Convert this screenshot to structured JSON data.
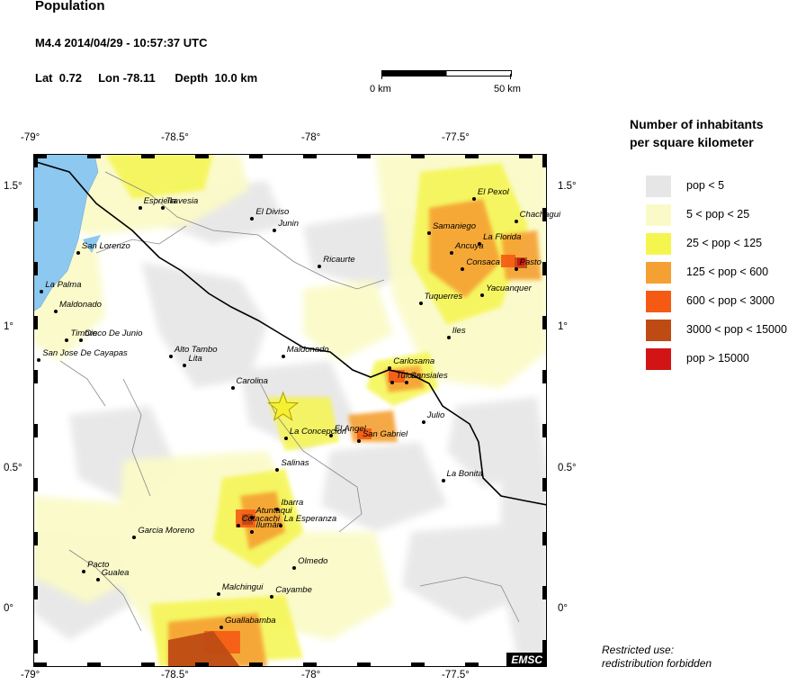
{
  "header": {
    "title": "Population",
    "event": "M4.4  2014/04/29 - 10:57:37 UTC",
    "lat_label": "Lat",
    "lat": "0.72",
    "lon_label": "Lon",
    "lon": "-78.11",
    "depth_label": "Depth",
    "depth": "10.0 km"
  },
  "scale_bar": {
    "left_label": "0 km",
    "right_label": "50 km"
  },
  "legend": {
    "title_line1": "Number of inhabitants",
    "title_line2": "per square kilometer",
    "items": [
      {
        "label": "pop < 5",
        "color": "#e6e6e6"
      },
      {
        "label": "5 < pop < 25",
        "color": "#fafac8"
      },
      {
        "label": "25 < pop < 125",
        "color": "#f5f550"
      },
      {
        "label": "125 < pop < 600",
        "color": "#f5a032"
      },
      {
        "label": "600 < pop < 3000",
        "color": "#f55a14"
      },
      {
        "label": "3000 < pop < 15000",
        "color": "#be4b14"
      },
      {
        "label": "pop > 15000",
        "color": "#d21414"
      }
    ]
  },
  "axes": {
    "lon_ticks": [
      "-79°",
      "-78.5°",
      "-78°",
      "-77.5°"
    ],
    "lat_ticks": [
      "1.5°",
      "1°",
      "0.5°",
      "0°"
    ],
    "lon_range": [
      -79.0,
      -77.17
    ],
    "lat_range": [
      -0.2,
      1.62
    ]
  },
  "epicenter": {
    "lat": 0.72,
    "lon": -78.11
  },
  "places": [
    {
      "name": "Esprieila",
      "lon": -78.62,
      "lat": 1.43
    },
    {
      "name": "Travesia",
      "lon": -78.54,
      "lat": 1.43
    },
    {
      "name": "El Diviso",
      "lon": -78.22,
      "lat": 1.39
    },
    {
      "name": "Junin",
      "lon": -78.14,
      "lat": 1.35
    },
    {
      "name": "San Lorenzo",
      "lon": -78.84,
      "lat": 1.27
    },
    {
      "name": "Ricaurte",
      "lon": -77.98,
      "lat": 1.22
    },
    {
      "name": "La Palma",
      "lon": -78.97,
      "lat": 1.13
    },
    {
      "name": "Maldonado",
      "lon": -78.92,
      "lat": 1.06
    },
    {
      "name": "Timbre",
      "lon": -78.88,
      "lat": 0.96
    },
    {
      "name": "Cinco De Junio",
      "lon": -78.83,
      "lat": 0.96
    },
    {
      "name": "San Jose De Cayapas",
      "lon": -78.98,
      "lat": 0.89
    },
    {
      "name": "Alto Tambo",
      "lon": -78.51,
      "lat": 0.9
    },
    {
      "name": "Lita",
      "lon": -78.46,
      "lat": 0.87
    },
    {
      "name": "Maldonado",
      "lon": -78.11,
      "lat": 0.9
    },
    {
      "name": "Carolina",
      "lon": -78.29,
      "lat": 0.79
    },
    {
      "name": "El Pexol",
      "lon": -77.43,
      "lat": 1.46
    },
    {
      "name": "Chachagui",
      "lon": -77.28,
      "lat": 1.38
    },
    {
      "name": "Samaniego",
      "lon": -77.59,
      "lat": 1.34
    },
    {
      "name": "La Florida",
      "lon": -77.41,
      "lat": 1.3
    },
    {
      "name": "Ancuya",
      "lon": -77.51,
      "lat": 1.27
    },
    {
      "name": "Consaca",
      "lon": -77.47,
      "lat": 1.21
    },
    {
      "name": "Pasto",
      "lon": -77.28,
      "lat": 1.21
    },
    {
      "name": "Yacuanquer",
      "lon": -77.4,
      "lat": 1.12
    },
    {
      "name": "Tuquerres",
      "lon": -77.62,
      "lat": 1.09
    },
    {
      "name": "Iles",
      "lon": -77.52,
      "lat": 0.97
    },
    {
      "name": "Carlosama",
      "lon": -77.73,
      "lat": 0.86
    },
    {
      "name": "Tulcan",
      "lon": -77.72,
      "lat": 0.81
    },
    {
      "name": "Cansiales",
      "lon": -77.67,
      "lat": 0.81
    },
    {
      "name": "El Angel",
      "lon": -77.94,
      "lat": 0.62
    },
    {
      "name": "Julio",
      "lon": -77.61,
      "lat": 0.67
    },
    {
      "name": "La Concepcion",
      "lon": -78.1,
      "lat": 0.61
    },
    {
      "name": "San Gabriel",
      "lon": -77.84,
      "lat": 0.6
    },
    {
      "name": "Salinas",
      "lon": -78.13,
      "lat": 0.5
    },
    {
      "name": "La Bonita",
      "lon": -77.54,
      "lat": 0.46
    },
    {
      "name": "Ibarra",
      "lon": -78.13,
      "lat": 0.36
    },
    {
      "name": "Atuntaqui",
      "lon": -78.22,
      "lat": 0.33
    },
    {
      "name": "Cotacachi",
      "lon": -78.27,
      "lat": 0.3
    },
    {
      "name": "La Esperanza",
      "lon": -78.12,
      "lat": 0.3
    },
    {
      "name": "Ilumán",
      "lon": -78.22,
      "lat": 0.28
    },
    {
      "name": "Garcia Moreno",
      "lon": -78.64,
      "lat": 0.26
    },
    {
      "name": "Olmedo",
      "lon": -78.07,
      "lat": 0.15
    },
    {
      "name": "Pacto",
      "lon": -78.82,
      "lat": 0.14
    },
    {
      "name": "Gualea",
      "lon": -78.77,
      "lat": 0.11
    },
    {
      "name": "Malchingui",
      "lon": -78.34,
      "lat": 0.06
    },
    {
      "name": "Cayambe",
      "lon": -78.15,
      "lat": 0.05
    },
    {
      "name": "Guallabamba",
      "lon": -78.33,
      "lat": -0.06
    }
  ],
  "watermark": "EMSC",
  "footnote": {
    "line1": "Restricted use:",
    "line2": "redistribution forbidden"
  }
}
